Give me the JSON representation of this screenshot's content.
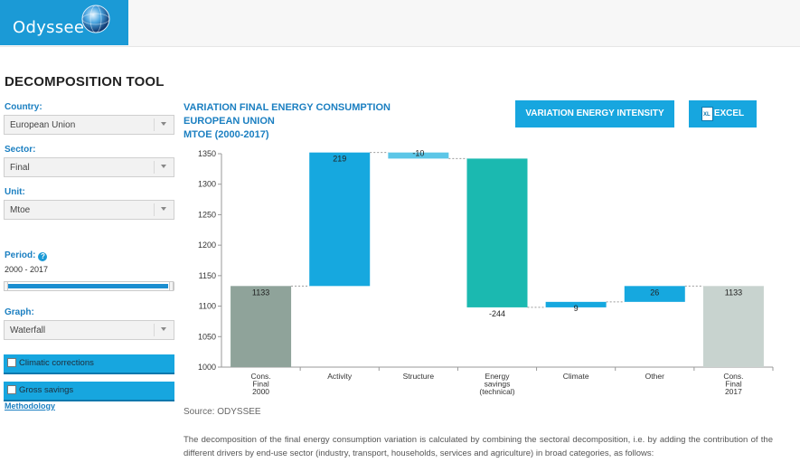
{
  "header": {
    "logo_text": "Odyssee"
  },
  "page": {
    "title": "DECOMPOSITION TOOL"
  },
  "sidebar": {
    "country_label": "Country:",
    "country_value": "European Union",
    "sector_label": "Sector:",
    "sector_value": "Final",
    "unit_label": "Unit:",
    "unit_value": "Mtoe",
    "period_label": "Period:",
    "period_value": "2000 - 2017",
    "graph_label": "Graph:",
    "graph_value": "Waterfall",
    "climatic_label": "Climatic corrections",
    "gross_label": "Gross savings",
    "methodology_link": "Methodology"
  },
  "chart_header": {
    "title_line1": "VARIATION FINAL ENERGY CONSUMPTION",
    "title_line2": "EUROPEAN UNION",
    "title_line3": "MTOE (2000-2017)",
    "btn_intensity": "VARIATION ENERGY INTENSITY",
    "btn_excel": "EXCEL",
    "excel_icon_text": "XL"
  },
  "chart_data": {
    "type": "waterfall",
    "title": "VARIATION FINAL ENERGY CONSUMPTION",
    "ylim": [
      1000,
      1350
    ],
    "yticks": [
      1000,
      1050,
      1100,
      1150,
      1200,
      1250,
      1300,
      1350
    ],
    "categories": [
      [
        "Cons.",
        "Final",
        "2000"
      ],
      [
        "Activity"
      ],
      [
        "Structure"
      ],
      [
        "Energy",
        "savings",
        "(technical)"
      ],
      [
        "Climate"
      ],
      [
        "Other"
      ],
      [
        "Cons.",
        "Final",
        "2017"
      ]
    ],
    "bars": [
      {
        "kind": "total",
        "start": 1000,
        "end": 1133,
        "label": "1133",
        "color": "#8fa39a"
      },
      {
        "kind": "delta",
        "start": 1133,
        "end": 1352,
        "label": "219",
        "color": "#16a8df"
      },
      {
        "kind": "delta",
        "start": 1352,
        "end": 1342,
        "label": "-10",
        "color": "#5cc6e7"
      },
      {
        "kind": "delta",
        "start": 1342,
        "end": 1098,
        "label": "-244",
        "color": "#1bb9b0"
      },
      {
        "kind": "delta",
        "start": 1098,
        "end": 1107,
        "label": "9",
        "color": "#16a8df"
      },
      {
        "kind": "delta",
        "start": 1107,
        "end": 1133,
        "label": "26",
        "color": "#16a8df"
      },
      {
        "kind": "total",
        "start": 1000,
        "end": 1133,
        "label": "1133",
        "color": "#c8d3cf"
      }
    ]
  },
  "footer": {
    "source": "Source: ODYSSEE",
    "description": "The decomposition of the final energy consumption variation is calculated by combining the sectoral decomposition, i.e. by adding the contribution of the different drivers by end-use sector (industry, transport, households, services and agriculture) in broad categories, as follows:"
  }
}
